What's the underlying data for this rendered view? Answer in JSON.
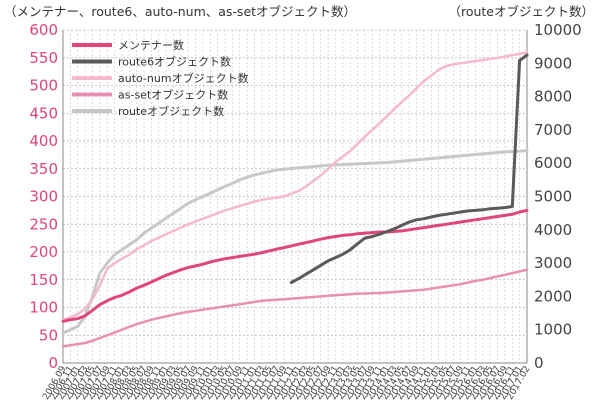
{
  "chart_data": {
    "type": "line",
    "left_axis_title": "（メンテナー、route6、auto-num、as-setオブジェクト数）",
    "right_axis_title": "（routeオブジェクト数）",
    "ylim_left": [
      0,
      600
    ],
    "yticks_left": [
      0,
      50,
      100,
      150,
      200,
      250,
      300,
      350,
      400,
      450,
      500,
      550,
      600
    ],
    "ylim_right": [
      0,
      10000
    ],
    "yticks_right": [
      0,
      1000,
      2000,
      3000,
      4000,
      5000,
      6000,
      7000,
      8000,
      9000,
      10000
    ],
    "x": [
      "2006.09",
      "2006.11",
      "2007.01",
      "2007.03",
      "2007.05",
      "2007.07",
      "2007.09",
      "2007.11",
      "2008.01",
      "2008.03",
      "2008.05",
      "2008.07",
      "2008.09",
      "2008.11",
      "2009.01",
      "2009.03",
      "2009.05",
      "2009.07",
      "2009.09",
      "2009.11",
      "2010.01",
      "2010.03",
      "2010.05",
      "2010.07",
      "2010.09",
      "2010.11",
      "2011.01",
      "2011.03",
      "2011.05",
      "2011.07",
      "2011.09",
      "2011.11",
      "2012.01",
      "2012.03",
      "2012.05",
      "2012.07",
      "2012.09",
      "2012.11",
      "2013.01",
      "2013.03",
      "2013.05",
      "2013.07",
      "2013.09",
      "2013.11",
      "2014.01",
      "2014.03",
      "2014.05",
      "2014.07",
      "2014.09",
      "2014.11",
      "2015.01",
      "2015.03",
      "2015.05",
      "2015.07",
      "2015.09",
      "2015.11",
      "2016.01",
      "2016.03",
      "2016.05",
      "2016.07",
      "2016.09",
      "2016.11",
      "2017.01",
      "2017.02"
    ],
    "xticks": [
      "2006.09",
      "2006.11",
      "2007.01",
      "2007.03",
      "2007.05",
      "2007.07",
      "2007.09",
      "2007.11",
      "2008.01",
      "2008.03",
      "2008.05",
      "2008.07",
      "2008.09",
      "2008.11",
      "2009.01",
      "2009.03",
      "2009.05",
      "2009.07",
      "2009.09",
      "2009.11",
      "2010.01",
      "2010.03",
      "2010.05",
      "2010.07",
      "2010.09",
      "2010.11",
      "2011.01",
      "2011.03",
      "2011.05",
      "2011.07",
      "2011.09",
      "2011.11",
      "2012.01",
      "2012.03",
      "2012.05",
      "2012.07",
      "2012.09",
      "2012.11",
      "2013.01",
      "2013.03",
      "2013.05",
      "2013.07",
      "2013.09",
      "2013.11",
      "2014.01",
      "2014.03",
      "2014.05",
      "2014.07",
      "2014.09",
      "2014.11",
      "2015.01",
      "2015.03",
      "2015.05",
      "2015.07",
      "2015.09",
      "2015.11",
      "2016.01",
      "2016.03",
      "2016.05",
      "2016.07",
      "2016.09",
      "2016.11",
      "2017.01",
      "2017.02"
    ],
    "grid": true,
    "legend_position": "top-left",
    "series": [
      {
        "name": "メンテナー数",
        "axis": "left",
        "color": "#e0457b",
        "width": 3,
        "values": [
          75,
          78,
          80,
          85,
          95,
          105,
          112,
          118,
          122,
          128,
          135,
          140,
          146,
          152,
          158,
          163,
          168,
          172,
          175,
          178,
          182,
          185,
          188,
          190,
          192,
          194,
          196,
          199,
          202,
          205,
          208,
          211,
          214,
          217,
          220,
          223,
          226,
          228,
          230,
          231,
          233,
          234,
          235,
          236,
          236,
          237,
          238,
          240,
          242,
          244,
          246,
          248,
          250,
          252,
          254,
          256,
          258,
          260,
          262,
          264,
          266,
          268,
          272,
          275
        ]
      },
      {
        "name": "route6オブジェクト数",
        "axis": "left",
        "color": "#5a5a5a",
        "width": 3,
        "values": [
          null,
          null,
          null,
          null,
          null,
          null,
          null,
          null,
          null,
          null,
          null,
          null,
          null,
          null,
          null,
          null,
          null,
          null,
          null,
          null,
          null,
          null,
          null,
          null,
          null,
          null,
          null,
          null,
          null,
          null,
          null,
          145,
          152,
          160,
          168,
          176,
          184,
          190,
          196,
          204,
          215,
          225,
          228,
          232,
          237,
          242,
          248,
          254,
          258,
          260,
          263,
          266,
          268,
          270,
          272,
          274,
          275,
          276,
          278,
          279,
          280,
          282,
          545,
          555
        ]
      },
      {
        "name": "auto-numオブジェクト数",
        "axis": "left",
        "color": "#f5b8cf",
        "width": 2.5,
        "values": [
          78,
          82,
          88,
          98,
          115,
          140,
          170,
          180,
          188,
          195,
          205,
          212,
          220,
          226,
          232,
          238,
          244,
          250,
          255,
          260,
          265,
          270,
          275,
          279,
          283,
          287,
          291,
          294,
          296,
          298,
          300,
          305,
          310,
          318,
          328,
          338,
          350,
          362,
          372,
          382,
          395,
          408,
          420,
          432,
          445,
          458,
          470,
          482,
          495,
          508,
          518,
          528,
          535,
          538,
          540,
          542,
          544,
          546,
          548,
          550,
          552,
          555,
          557,
          560
        ]
      },
      {
        "name": "as-setオブジェクト数",
        "axis": "left",
        "color": "#e98fb3",
        "width": 2.5,
        "values": [
          30,
          32,
          34,
          36,
          40,
          45,
          50,
          55,
          60,
          65,
          70,
          74,
          78,
          81,
          84,
          87,
          90,
          92,
          94,
          96,
          98,
          100,
          102,
          104,
          106,
          108,
          110,
          112,
          113,
          114,
          115,
          116,
          117,
          118,
          119,
          120,
          121,
          122,
          123,
          124,
          125,
          125,
          126,
          126,
          127,
          128,
          129,
          130,
          131,
          132,
          134,
          136,
          138,
          140,
          142,
          145,
          148,
          150,
          153,
          156,
          159,
          162,
          165,
          168
        ]
      },
      {
        "name": "routeオブジェクト数",
        "axis": "right",
        "color": "#c8c8c8",
        "width": 3,
        "values": [
          900,
          1000,
          1100,
          1400,
          2000,
          2700,
          3000,
          3250,
          3400,
          3550,
          3700,
          3900,
          4050,
          4200,
          4350,
          4500,
          4650,
          4800,
          4900,
          5000,
          5100,
          5200,
          5300,
          5400,
          5500,
          5580,
          5650,
          5700,
          5750,
          5800,
          5820,
          5840,
          5860,
          5880,
          5900,
          5920,
          5940,
          5950,
          5960,
          5970,
          5980,
          5990,
          6000,
          6010,
          6020,
          6040,
          6060,
          6080,
          6100,
          6120,
          6140,
          6160,
          6180,
          6200,
          6220,
          6240,
          6260,
          6280,
          6300,
          6320,
          6340,
          6350,
          6360,
          6380
        ]
      }
    ]
  }
}
